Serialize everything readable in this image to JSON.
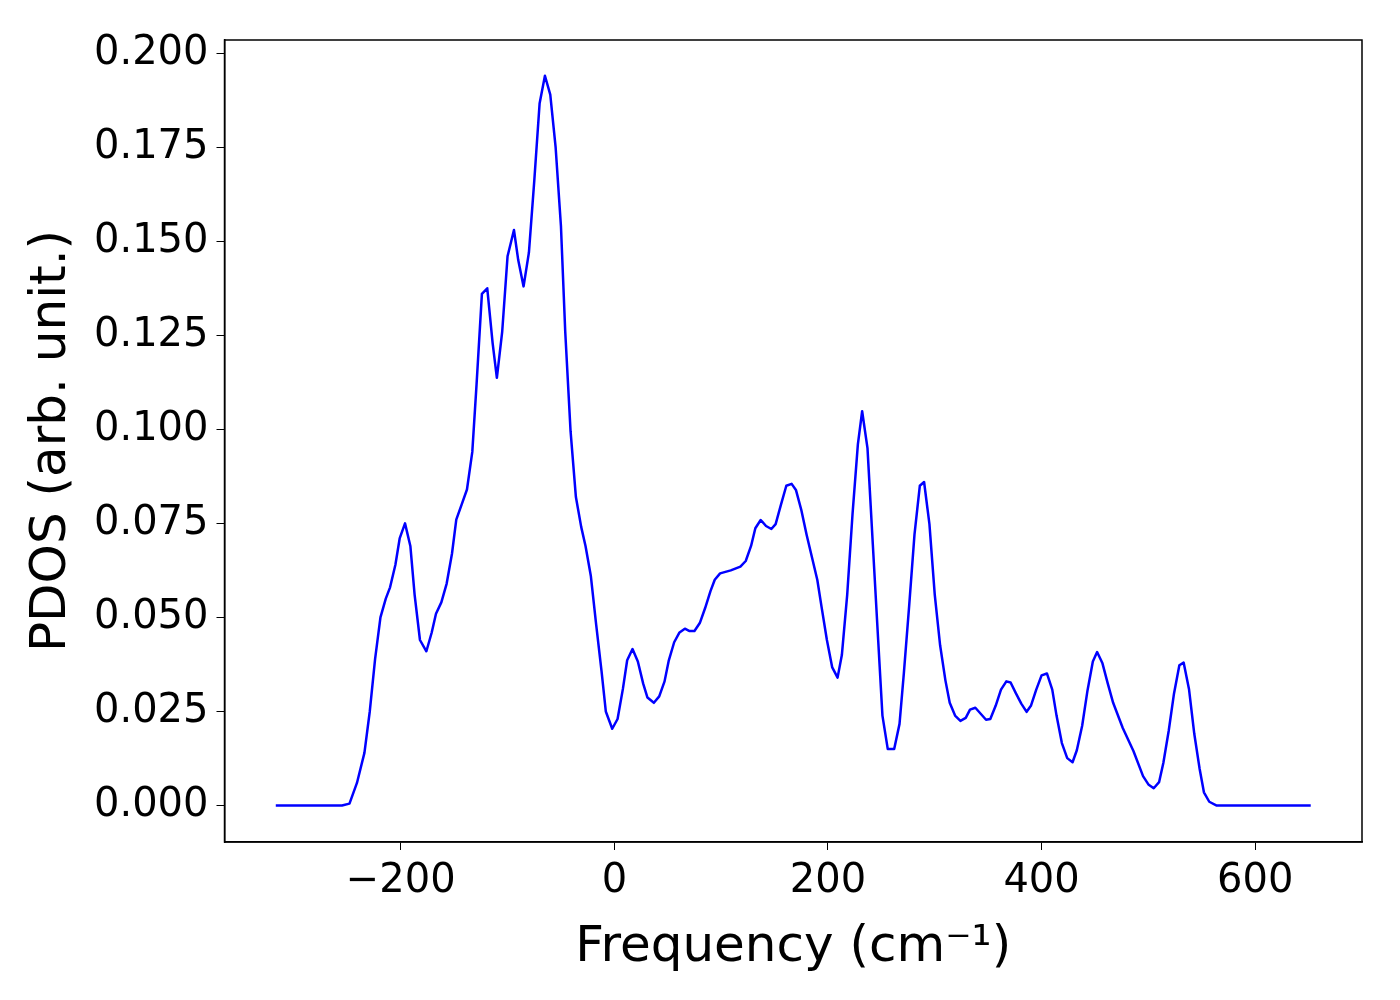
{
  "chart_data": {
    "type": "line",
    "xlabel": "Frequency (cm⁻¹)",
    "ylabel": "PDOS (arb. unit.)",
    "xlim": [
      -365,
      700
    ],
    "ylim": [
      -0.0097,
      0.2035
    ],
    "xticks": [
      {
        "value": -200,
        "label": "−200"
      },
      0,
      200,
      400,
      600
    ],
    "yticks": [
      {
        "value": 0,
        "label": "0.000"
      },
      {
        "value": 0.025,
        "label": "0.025"
      },
      {
        "value": 0.05,
        "label": "0.050"
      },
      {
        "value": 0.075,
        "label": "0.075"
      },
      {
        "value": 0.1,
        "label": "0.100"
      },
      {
        "value": 0.125,
        "label": "0.125"
      },
      {
        "value": 0.15,
        "label": "0.150"
      },
      {
        "value": 0.175,
        "label": "0.175"
      },
      {
        "value": 0.2,
        "label": "0.200"
      }
    ],
    "grid": false,
    "legend": false,
    "marker": "none",
    "line_style": "solid",
    "x": [
      -317,
      -255,
      -248,
      -241,
      -234,
      -229,
      -224,
      -219,
      -214,
      -210,
      -205,
      -201,
      -196,
      -191,
      -187,
      -182,
      -176,
      -171,
      -167,
      -162,
      -157,
      -152,
      -148,
      -143,
      -138,
      -133,
      -129,
      -124,
      -119,
      -114,
      -110,
      -105,
      -100,
      -94,
      -90,
      -85,
      -80,
      -75,
      -70,
      -65,
      -60,
      -55,
      -50,
      -46,
      -41,
      -36,
      -31,
      -27,
      -22,
      -17,
      -12,
      -8,
      -2,
      3,
      8,
      12,
      17,
      22,
      27,
      31,
      37,
      42,
      47,
      51,
      56,
      61,
      66,
      70,
      75,
      80,
      85,
      90,
      94,
      99,
      109,
      118,
      123,
      128,
      132,
      137,
      142,
      147,
      151,
      156,
      161,
      166,
      170,
      175,
      180,
      185,
      190,
      194,
      199,
      204,
      209,
      213,
      218,
      223,
      228,
      232,
      237,
      242,
      247,
      251,
      256,
      262,
      267,
      271,
      276,
      281,
      286,
      290,
      295,
      300,
      305,
      310,
      314,
      319,
      324,
      329,
      333,
      338,
      343,
      348,
      352,
      357,
      362,
      367,
      371,
      376,
      381,
      386,
      390,
      395,
      400,
      405,
      410,
      414,
      419,
      424,
      429,
      433,
      438,
      443,
      448,
      452,
      457,
      462,
      467,
      476,
      486,
      495,
      500,
      505,
      510,
      514,
      519,
      524,
      529,
      533,
      538,
      543,
      548,
      552,
      557,
      564,
      652
    ],
    "series": [
      {
        "color": "#0000ff",
        "values": [
          0,
          0,
          0.0005,
          0.006,
          0.014,
          0.025,
          0.039,
          0.05,
          0.055,
          0.058,
          0.064,
          0.071,
          0.075,
          0.069,
          0.056,
          0.044,
          0.041,
          0.046,
          0.051,
          0.054,
          0.059,
          0.067,
          0.076,
          0.08,
          0.084,
          0.094,
          0.112,
          0.136,
          0.1375,
          0.123,
          0.1137,
          0.126,
          0.146,
          0.153,
          0.145,
          0.138,
          0.147,
          0.166,
          0.1866,
          0.194,
          0.189,
          0.175,
          0.154,
          0.126,
          0.0995,
          0.082,
          0.074,
          0.069,
          0.061,
          0.048,
          0.0357,
          0.025,
          0.0204,
          0.023,
          0.031,
          0.0386,
          0.0416,
          0.0383,
          0.0324,
          0.0287,
          0.0273,
          0.029,
          0.033,
          0.0386,
          0.0434,
          0.046,
          0.047,
          0.0464,
          0.0464,
          0.0485,
          0.0525,
          0.057,
          0.06,
          0.0617,
          0.0625,
          0.0635,
          0.065,
          0.069,
          0.0737,
          0.0759,
          0.0743,
          0.0735,
          0.0748,
          0.08,
          0.085,
          0.0855,
          0.0839,
          0.0786,
          0.072,
          0.066,
          0.06,
          0.0528,
          0.044,
          0.0367,
          0.034,
          0.04,
          0.056,
          0.0775,
          0.096,
          0.1048,
          0.095,
          0.0694,
          0.044,
          0.0239,
          0.015,
          0.015,
          0.0217,
          0.035,
          0.053,
          0.072,
          0.085,
          0.086,
          0.0748,
          0.056,
          0.0426,
          0.0332,
          0.0273,
          0.0239,
          0.0225,
          0.0233,
          0.0255,
          0.026,
          0.0244,
          0.0228,
          0.023,
          0.0265,
          0.0308,
          0.033,
          0.0327,
          0.0298,
          0.0271,
          0.0249,
          0.0265,
          0.0308,
          0.0346,
          0.0351,
          0.0308,
          0.0239,
          0.0166,
          0.0126,
          0.0115,
          0.0147,
          0.0212,
          0.0306,
          0.0383,
          0.0408,
          0.0378,
          0.0324,
          0.0273,
          0.0206,
          0.0145,
          0.0078,
          0.0056,
          0.0046,
          0.0062,
          0.0113,
          0.0198,
          0.0298,
          0.0373,
          0.038,
          0.031,
          0.019,
          0.0097,
          0.0035,
          0.001,
          0,
          0
        ]
      }
    ]
  }
}
